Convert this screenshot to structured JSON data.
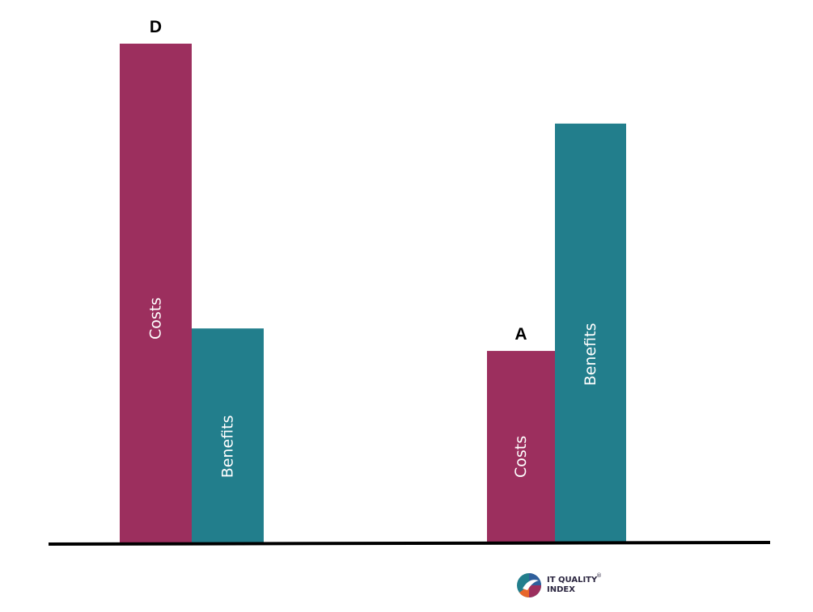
{
  "chart_data": {
    "type": "bar",
    "categories": [
      "D",
      "A"
    ],
    "series": [
      {
        "key": "costs",
        "label": "Costs",
        "color": "#9c2f5e",
        "values": [
          100,
          38.5
        ]
      },
      {
        "key": "benefits",
        "label": "Benefits",
        "color": "#227e8c",
        "values": [
          43,
          84
        ]
      }
    ],
    "ylim": [
      0,
      100
    ],
    "grid": false,
    "legend": "none",
    "axis_color": "#000000"
  },
  "logo": {
    "line1": "IT QUALITY",
    "line2": "INDEX",
    "registered": "®"
  }
}
